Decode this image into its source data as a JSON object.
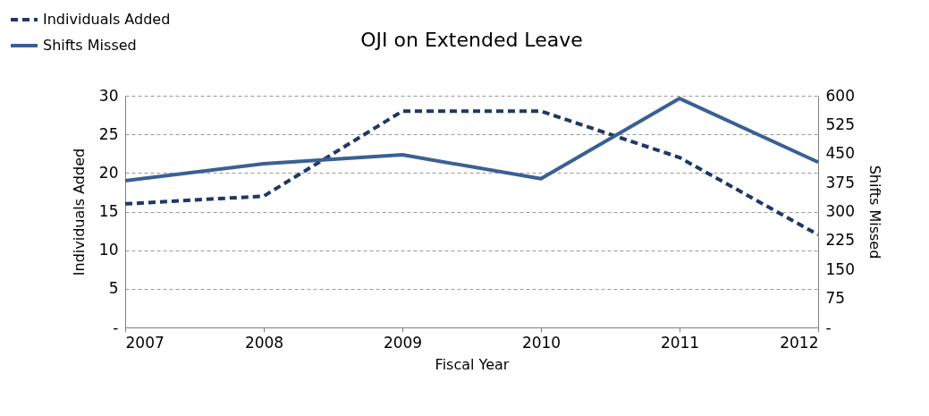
{
  "chart_data": {
    "type": "line",
    "title": "OJI on Extended Leave",
    "xlabel": "Fiscal Year",
    "ylabel": "Individuals Added",
    "y2label": "Shifts Missed",
    "categories": [
      "2007",
      "2008",
      "2009",
      "2010",
      "2011",
      "2012"
    ],
    "series": [
      {
        "name": "Individuals Added",
        "color": "#1f3864",
        "line_style": "dashed",
        "values": [
          16,
          17,
          28,
          28,
          22,
          12
        ]
      },
      {
        "name": "Shifts Missed",
        "color": "#3a6094",
        "line_style": "solid",
        "axis": "y2",
        "values": [
          380,
          424,
          447,
          385,
          593,
          428
        ]
      }
    ],
    "ylim": [
      0,
      30
    ],
    "yticks": [
      {
        "value": 0,
        "label": "-"
      },
      5,
      10,
      15,
      20,
      25,
      30
    ],
    "y2lim": [
      0,
      600
    ],
    "y2ticks": [
      {
        "value": 0,
        "label": "-"
      },
      75,
      150,
      225,
      300,
      375,
      450,
      525,
      600
    ],
    "grid": "y",
    "legend": "top left",
    "marker": "none"
  }
}
